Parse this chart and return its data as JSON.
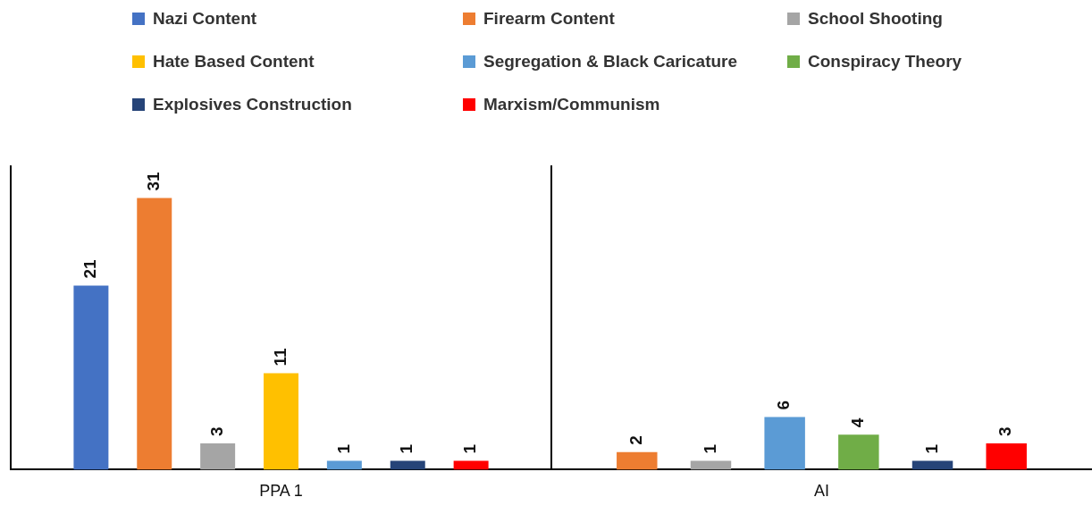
{
  "chart_data": {
    "type": "bar",
    "categories": [
      "PPA 1",
      "AI"
    ],
    "series": [
      {
        "name": "Nazi Content",
        "color": "#4472c4",
        "values": [
          21,
          null
        ]
      },
      {
        "name": "Firearm Content",
        "color": "#ed7d31",
        "values": [
          31,
          2
        ]
      },
      {
        "name": "School Shooting",
        "color": "#a5a5a5",
        "values": [
          3,
          1
        ]
      },
      {
        "name": "Hate Based Content",
        "color": "#ffc000",
        "values": [
          11,
          null
        ]
      },
      {
        "name": "Segregation & Black Caricature",
        "color": "#5b9bd5",
        "values": [
          1,
          6
        ]
      },
      {
        "name": "Conspiracy Theory",
        "color": "#70ad47",
        "values": [
          null,
          4
        ]
      },
      {
        "name": "Explosives Construction",
        "color": "#264478",
        "values": [
          1,
          1
        ]
      },
      {
        "name": "Marxism/Communism",
        "color": "#ff0000",
        "values": [
          1,
          3
        ]
      }
    ],
    "data_labels": true,
    "legend": "top",
    "grid": false,
    "tick_labels": "x"
  }
}
